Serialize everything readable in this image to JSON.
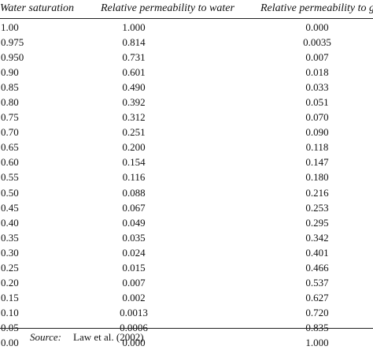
{
  "table": {
    "headers": {
      "water_saturation": "Water saturation",
      "relative_permeability_water": "Relative permeability to water",
      "relative_permeability_gas": "Relative permeability to gas"
    },
    "rows": [
      {
        "sat": "1.00",
        "water": "1.000",
        "gas": "0.000"
      },
      {
        "sat": "0.975",
        "water": "0.814",
        "gas": "0.0035"
      },
      {
        "sat": "0.950",
        "water": "0.731",
        "gas": "0.007"
      },
      {
        "sat": "0.90",
        "water": "0.601",
        "gas": "0.018"
      },
      {
        "sat": "0.85",
        "water": "0.490",
        "gas": "0.033"
      },
      {
        "sat": "0.80",
        "water": "0.392",
        "gas": "0.051"
      },
      {
        "sat": "0.75",
        "water": "0.312",
        "gas": "0.070"
      },
      {
        "sat": "0.70",
        "water": "0.251",
        "gas": "0.090"
      },
      {
        "sat": "0.65",
        "water": "0.200",
        "gas": "0.118"
      },
      {
        "sat": "0.60",
        "water": "0.154",
        "gas": "0.147"
      },
      {
        "sat": "0.55",
        "water": "0.116",
        "gas": "0.180"
      },
      {
        "sat": "0.50",
        "water": "0.088",
        "gas": "0.216"
      },
      {
        "sat": "0.45",
        "water": "0.067",
        "gas": "0.253"
      },
      {
        "sat": "0.40",
        "water": "0.049",
        "gas": "0.295"
      },
      {
        "sat": "0.35",
        "water": "0.035",
        "gas": "0.342"
      },
      {
        "sat": "0.30",
        "water": "0.024",
        "gas": "0.401"
      },
      {
        "sat": "0.25",
        "water": "0.015",
        "gas": "0.466"
      },
      {
        "sat": "0.20",
        "water": "0.007",
        "gas": "0.537"
      },
      {
        "sat": "0.15",
        "water": "0.002",
        "gas": "0.627"
      },
      {
        "sat": "0.10",
        "water": "0.0013",
        "gas": "0.720"
      },
      {
        "sat": "0.05",
        "water": "0.0006",
        "gas": "0.835"
      },
      {
        "sat": "0.00",
        "water": "0.000",
        "gas": "1.000"
      }
    ]
  },
  "source": {
    "label": "Source:",
    "text": "Law et al. (2002)"
  }
}
